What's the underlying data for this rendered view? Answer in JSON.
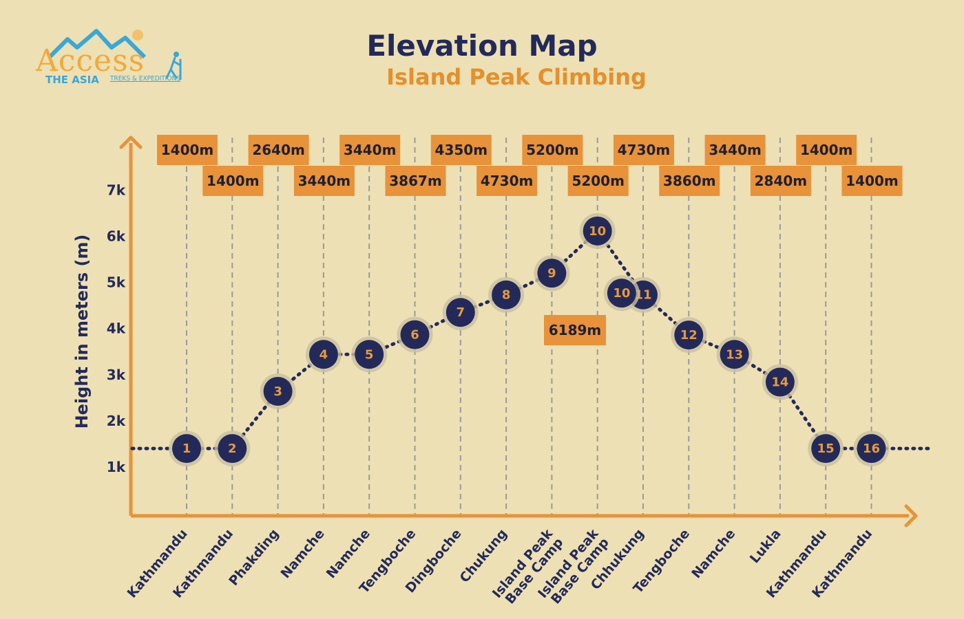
{
  "logo": {
    "word": "Access",
    "line2": "THE ASIA",
    "line3": "TREKS & EXPEDITIONS"
  },
  "chart_data": {
    "type": "line",
    "title": "Elevation Map",
    "subtitle": "Island Peak Climbing",
    "ylabel": "Height in meters (m)",
    "xlabel": "",
    "ylim": [
      0,
      7000
    ],
    "yticks": [
      "1k",
      "2k",
      "3k",
      "4k",
      "5k",
      "6k",
      "7k"
    ],
    "grid": "vertical dashed lines at each stop",
    "series": [
      {
        "points": [
          {
            "day": "1",
            "place": "Kathmandu",
            "elevation": 1400,
            "label": "1400m"
          },
          {
            "day": "2",
            "place": "Kathmandu",
            "elevation": 1400,
            "label": "1400m"
          },
          {
            "day": "3",
            "place": "Phakding",
            "elevation": 2640,
            "label": "2640m"
          },
          {
            "day": "4",
            "place": "Namche",
            "elevation": 3440,
            "label": "3440m"
          },
          {
            "day": "5",
            "place": "Namche",
            "elevation": 3440,
            "label": "3440m"
          },
          {
            "day": "6",
            "place": "Tengboche",
            "elevation": 3867,
            "label": "3867m"
          },
          {
            "day": "7",
            "place": "Dingboche",
            "elevation": 4350,
            "label": "4350m"
          },
          {
            "day": "8",
            "place": "Chukung",
            "elevation": 4730,
            "label": "4730m"
          },
          {
            "day": "9",
            "place": "Island Peak Base Camp",
            "elevation": 5200,
            "label": "5200m"
          },
          {
            "day": "10",
            "place": "Island Peak Base Camp",
            "elevation": 5200,
            "label": "5200m"
          },
          {
            "day": "11",
            "place": "Chhukung",
            "elevation": 4730,
            "label": "4730m"
          },
          {
            "day": "12",
            "place": "Tengboche",
            "elevation": 3860,
            "label": "3860m"
          },
          {
            "day": "13",
            "place": "Namche",
            "elevation": 3440,
            "label": "3440m"
          },
          {
            "day": "14",
            "place": "Lukla",
            "elevation": 2840,
            "label": "2840m"
          },
          {
            "day": "15",
            "place": "Kathmandu",
            "elevation": 1400,
            "label": "1400m"
          },
          {
            "day": "16",
            "place": "Kathmandu",
            "elevation": 1400,
            "label": "1400m"
          }
        ],
        "summit": {
          "day": "10",
          "elevation": 6189,
          "label": "6189m"
        }
      }
    ]
  },
  "colors": {
    "background": "#ede0b4",
    "axis": "#e8923a",
    "node_fill": "#232a5a",
    "node_text": "#e89b3c",
    "label_box": "#e8923a",
    "title": "#232a5a",
    "subtitle": "#e4902c"
  }
}
